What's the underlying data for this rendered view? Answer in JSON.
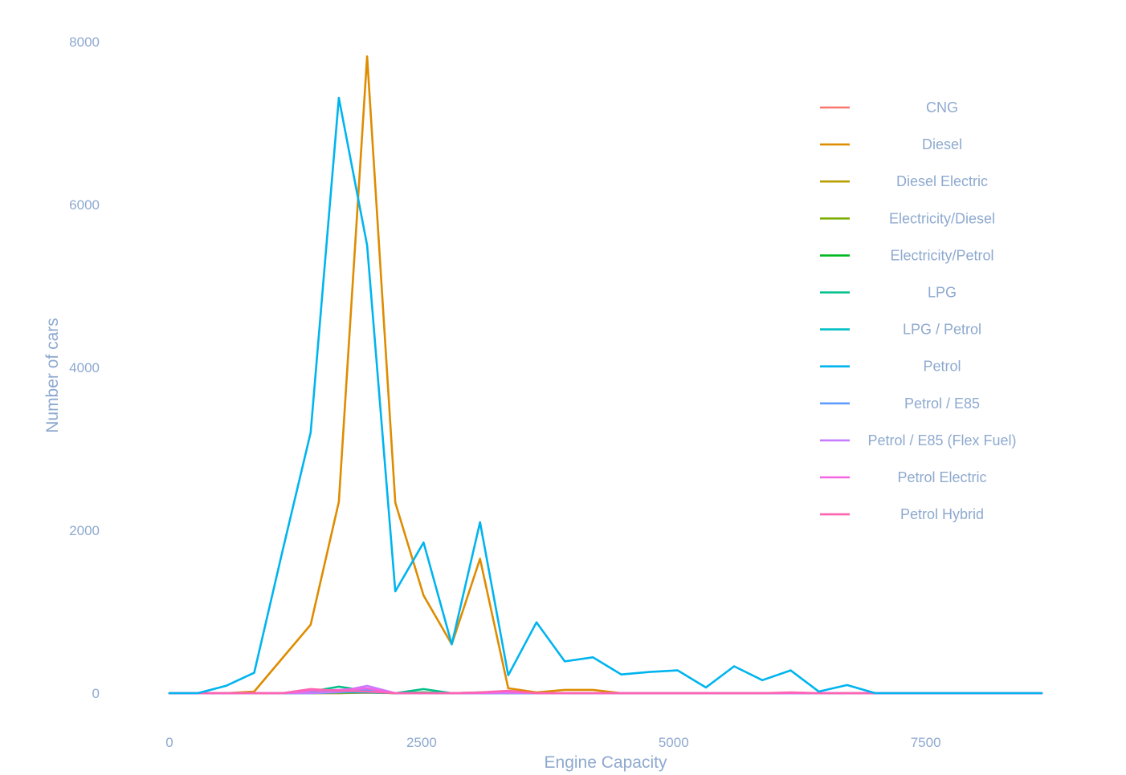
{
  "chart_data": {
    "type": "line",
    "title": "",
    "xlabel": "Engine Capacity",
    "ylabel": "Number of cars",
    "xlim": [
      0,
      8650
    ],
    "ylim": [
      0,
      8000
    ],
    "xticks": [
      0,
      2500,
      5000,
      7500
    ],
    "yticks": [
      0,
      2000,
      4000,
      6000,
      8000
    ],
    "grid": false,
    "legend_position": "right",
    "x": [
      0,
      280,
      560,
      840,
      1120,
      1400,
      1680,
      1960,
      2240,
      2520,
      2800,
      3080,
      3360,
      3640,
      3920,
      4200,
      4480,
      4760,
      5040,
      5320,
      5600,
      5880,
      6160,
      6440,
      6720,
      7000,
      7280,
      7560,
      7840,
      8120,
      8400,
      8650
    ],
    "series": [
      {
        "name": "CNG",
        "color": "#f8766d",
        "values": [
          0,
          0,
          0,
          0,
          0,
          0,
          0,
          5,
          0,
          0,
          0,
          0,
          0,
          0,
          0,
          0,
          0,
          0,
          0,
          0,
          0,
          0,
          0,
          0,
          0,
          0,
          0,
          0,
          0,
          0,
          0,
          0
        ]
      },
      {
        "name": "Diesel",
        "color": "#de8c00",
        "values": [
          0,
          0,
          0,
          20,
          430,
          840,
          2350,
          7820,
          2340,
          1200,
          600,
          1650,
          60,
          10,
          40,
          40,
          0,
          0,
          0,
          0,
          0,
          0,
          0,
          0,
          0,
          0,
          0,
          0,
          0,
          0,
          0,
          0
        ]
      },
      {
        "name": "Diesel Electric",
        "color": "#b79f00",
        "values": [
          0,
          0,
          0,
          0,
          0,
          0,
          0,
          10,
          0,
          0,
          0,
          0,
          0,
          0,
          0,
          0,
          0,
          0,
          0,
          0,
          0,
          0,
          0,
          0,
          0,
          0,
          0,
          0,
          0,
          0,
          0,
          0
        ]
      },
      {
        "name": "Electricity/Diesel",
        "color": "#7cae00",
        "values": [
          0,
          0,
          0,
          0,
          0,
          0,
          5,
          10,
          0,
          0,
          0,
          0,
          0,
          0,
          0,
          0,
          0,
          0,
          0,
          0,
          0,
          0,
          0,
          0,
          0,
          0,
          0,
          0,
          0,
          0,
          0,
          0
        ]
      },
      {
        "name": "Electricity/Petrol",
        "color": "#00b81f",
        "values": [
          0,
          0,
          0,
          0,
          0,
          10,
          15,
          20,
          0,
          10,
          0,
          0,
          0,
          0,
          0,
          0,
          0,
          0,
          0,
          0,
          0,
          0,
          0,
          0,
          0,
          0,
          0,
          0,
          0,
          0,
          0,
          0
        ]
      },
      {
        "name": "LPG",
        "color": "#00c08b",
        "values": [
          0,
          0,
          0,
          0,
          0,
          20,
          80,
          30,
          0,
          50,
          0,
          10,
          20,
          0,
          0,
          0,
          0,
          0,
          0,
          0,
          0,
          0,
          0,
          0,
          0,
          0,
          0,
          0,
          0,
          0,
          0,
          0
        ]
      },
      {
        "name": "LPG / Petrol",
        "color": "#00bfc4",
        "values": [
          0,
          0,
          0,
          0,
          0,
          0,
          10,
          10,
          0,
          0,
          0,
          0,
          0,
          0,
          0,
          0,
          0,
          0,
          0,
          0,
          0,
          0,
          0,
          0,
          0,
          0,
          0,
          0,
          0,
          0,
          0,
          0
        ]
      },
      {
        "name": "Petrol",
        "color": "#00b4ef",
        "values": [
          0,
          0,
          90,
          250,
          1740,
          3200,
          7310,
          5500,
          1250,
          1850,
          600,
          2100,
          220,
          870,
          390,
          440,
          230,
          260,
          280,
          70,
          330,
          160,
          280,
          20,
          100,
          0,
          0,
          0,
          0,
          0,
          0,
          0
        ]
      },
      {
        "name": "Petrol / E85",
        "color": "#619cff",
        "values": [
          0,
          0,
          0,
          0,
          0,
          0,
          10,
          40,
          0,
          0,
          0,
          0,
          0,
          0,
          0,
          0,
          0,
          0,
          0,
          0,
          0,
          0,
          0,
          0,
          0,
          0,
          0,
          0,
          0,
          0,
          0,
          0
        ]
      },
      {
        "name": "Petrol / E85 (Flex Fuel)",
        "color": "#c77cff",
        "values": [
          0,
          0,
          0,
          0,
          0,
          0,
          20,
          90,
          0,
          0,
          0,
          0,
          0,
          0,
          0,
          0,
          0,
          0,
          0,
          0,
          0,
          0,
          0,
          0,
          0,
          0,
          0,
          0,
          0,
          0,
          0,
          0
        ]
      },
      {
        "name": "Petrol Electric",
        "color": "#f564e3",
        "values": [
          0,
          0,
          0,
          0,
          0,
          30,
          40,
          60,
          0,
          0,
          0,
          0,
          20,
          0,
          0,
          0,
          0,
          0,
          0,
          0,
          0,
          0,
          0,
          0,
          0,
          0,
          0,
          0,
          0,
          0,
          0,
          0
        ]
      },
      {
        "name": "Petrol Hybrid",
        "color": "#ff64b0",
        "values": [
          0,
          0,
          0,
          0,
          0,
          50,
          30,
          20,
          0,
          0,
          0,
          10,
          30,
          0,
          0,
          0,
          0,
          0,
          0,
          0,
          0,
          0,
          10,
          0,
          0,
          0,
          0,
          0,
          0,
          0,
          0,
          0
        ]
      }
    ]
  }
}
